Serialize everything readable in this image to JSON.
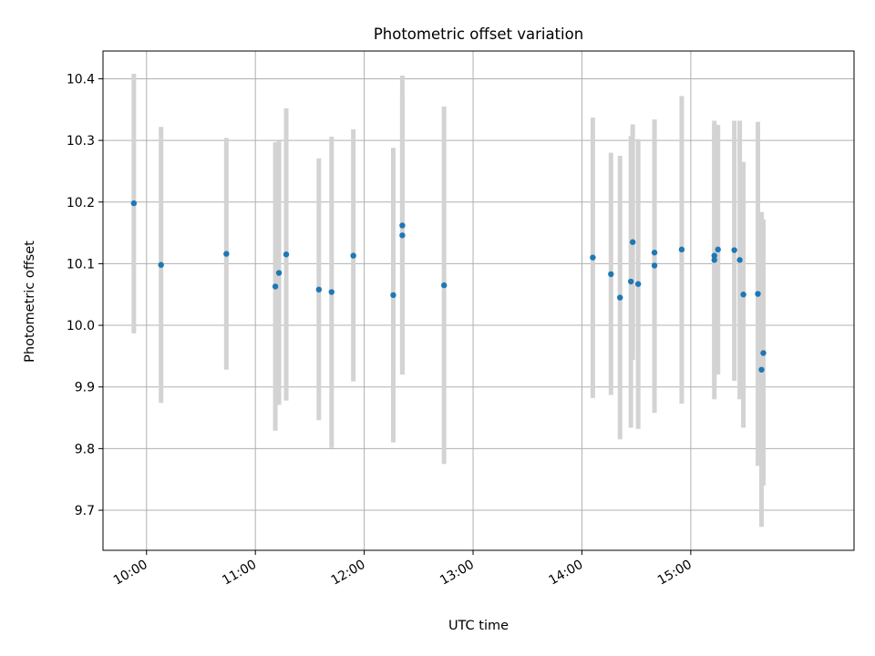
{
  "chart_data": {
    "type": "scatter",
    "title": "Photometric offset variation",
    "xlabel": "UTC time",
    "ylabel": "Photometric offset",
    "xlim": [
      "09:36",
      "16:30"
    ],
    "ylim": [
      9.635,
      10.445
    ],
    "grid": true,
    "x_ticks": [
      "10:00",
      "11:00",
      "12:00",
      "13:00",
      "14:00",
      "15:00"
    ],
    "y_ticks": [
      9.7,
      9.8,
      9.9,
      10.0,
      10.1,
      10.2,
      10.3,
      10.4
    ],
    "colors": {
      "point": "#1f77b4",
      "errorbar": "#d3d3d3",
      "grid": "#b0b0b0"
    },
    "points": [
      {
        "time": "09:53",
        "value": 10.198,
        "low": 9.987,
        "high": 10.408
      },
      {
        "time": "10:08",
        "value": 10.098,
        "low": 9.874,
        "high": 10.322
      },
      {
        "time": "10:44",
        "value": 10.116,
        "low": 9.928,
        "high": 10.304
      },
      {
        "time": "11:11",
        "value": 10.063,
        "low": 9.829,
        "high": 10.297
      },
      {
        "time": "11:13",
        "value": 10.085,
        "low": 9.871,
        "high": 10.299
      },
      {
        "time": "11:17",
        "value": 10.115,
        "low": 9.878,
        "high": 10.352
      },
      {
        "time": "11:35",
        "value": 10.058,
        "low": 9.846,
        "high": 10.271
      },
      {
        "time": "11:42",
        "value": 10.054,
        "low": 9.801,
        "high": 10.306
      },
      {
        "time": "11:54",
        "value": 10.113,
        "low": 9.909,
        "high": 10.318
      },
      {
        "time": "12:16",
        "value": 10.049,
        "low": 9.81,
        "high": 10.288
      },
      {
        "time": "12:21",
        "value": 10.162,
        "low": 9.92,
        "high": 10.405
      },
      {
        "time": "12:21",
        "value": 10.146,
        "low": 9.92,
        "high": 10.372
      },
      {
        "time": "12:44",
        "value": 10.065,
        "low": 9.775,
        "high": 10.355
      },
      {
        "time": "14:06",
        "value": 10.11,
        "low": 9.882,
        "high": 10.337
      },
      {
        "time": "14:16",
        "value": 10.083,
        "low": 9.887,
        "high": 10.28
      },
      {
        "time": "14:21",
        "value": 10.045,
        "low": 9.815,
        "high": 10.275
      },
      {
        "time": "14:27",
        "value": 10.071,
        "low": 9.834,
        "high": 10.307
      },
      {
        "time": "14:28",
        "value": 10.135,
        "low": 9.944,
        "high": 10.326
      },
      {
        "time": "14:31",
        "value": 10.067,
        "low": 9.832,
        "high": 10.302
      },
      {
        "time": "14:40",
        "value": 10.097,
        "low": 9.858,
        "high": 10.334
      },
      {
        "time": "14:40",
        "value": 10.118,
        "low": 9.903,
        "high": 10.332
      },
      {
        "time": "14:55",
        "value": 10.123,
        "low": 9.873,
        "high": 10.372
      },
      {
        "time": "15:13",
        "value": 10.106,
        "low": 9.88,
        "high": 10.332
      },
      {
        "time": "15:13",
        "value": 10.113,
        "low": 9.898,
        "high": 10.328
      },
      {
        "time": "15:15",
        "value": 10.123,
        "low": 9.92,
        "high": 10.325
      },
      {
        "time": "15:24",
        "value": 10.122,
        "low": 9.91,
        "high": 10.332
      },
      {
        "time": "15:27",
        "value": 10.106,
        "low": 9.88,
        "high": 10.332
      },
      {
        "time": "15:29",
        "value": 10.05,
        "low": 9.834,
        "high": 10.265
      },
      {
        "time": "15:37",
        "value": 10.051,
        "low": 9.772,
        "high": 10.33
      },
      {
        "time": "15:39",
        "value": 9.928,
        "low": 9.673,
        "high": 10.184
      },
      {
        "time": "15:40",
        "value": 9.955,
        "low": 9.74,
        "high": 10.172
      }
    ]
  }
}
